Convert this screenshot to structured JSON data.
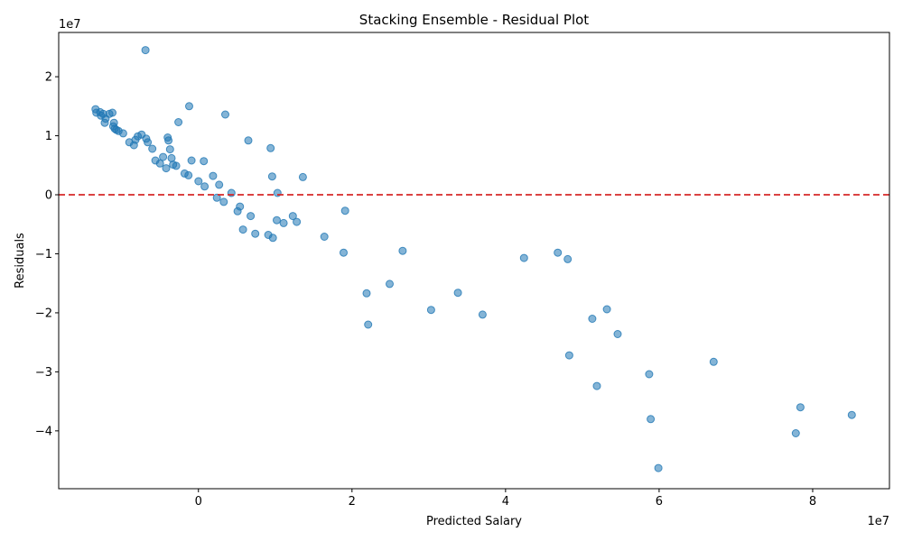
{
  "chart_data": {
    "type": "scatter",
    "title": "Stacking Ensemble - Residual Plot",
    "xlabel": "Predicted Salary",
    "ylabel": "Residuals",
    "x_offset_label": "1e7",
    "y_offset_label": "1e7",
    "xlim": [
      -1.82,
      9.0
    ],
    "ylim": [
      -4.98,
      2.75
    ],
    "x_ticks": [
      0,
      2,
      4,
      6,
      8
    ],
    "x_tick_labels": [
      "0",
      "2",
      "4",
      "6",
      "8"
    ],
    "y_ticks": [
      -4,
      -3,
      -2,
      -1,
      0,
      1,
      2
    ],
    "y_tick_labels": [
      "−4",
      "−3",
      "−2",
      "−1",
      "0",
      "1",
      "2"
    ],
    "reference_line": {
      "y": 0,
      "color": "#d62728",
      "style": "dashed"
    },
    "marker_color": "#1f77b4",
    "marker_alpha": 0.55,
    "grid": false,
    "points": [
      [
        -1.34,
        1.45
      ],
      [
        -1.33,
        1.39
      ],
      [
        -1.28,
        1.4
      ],
      [
        -1.27,
        1.34
      ],
      [
        -1.24,
        1.37
      ],
      [
        -1.21,
        1.29
      ],
      [
        -1.22,
        1.22
      ],
      [
        -1.16,
        1.37
      ],
      [
        -1.12,
        1.39
      ],
      [
        -1.11,
        1.16
      ],
      [
        -1.1,
        1.22
      ],
      [
        -1.09,
        1.12
      ],
      [
        -1.07,
        1.1
      ],
      [
        -1.04,
        1.08
      ],
      [
        -0.98,
        1.04
      ],
      [
        -0.9,
        0.89
      ],
      [
        -0.84,
        0.84
      ],
      [
        -0.82,
        0.93
      ],
      [
        -0.79,
        0.99
      ],
      [
        -0.74,
        1.02
      ],
      [
        -0.68,
        0.95
      ],
      [
        -0.66,
        0.89
      ],
      [
        -0.6,
        0.78
      ],
      [
        -0.69,
        2.45
      ],
      [
        -0.56,
        0.58
      ],
      [
        -0.5,
        0.53
      ],
      [
        -0.46,
        0.64
      ],
      [
        -0.42,
        0.45
      ],
      [
        -0.4,
        0.97
      ],
      [
        -0.39,
        0.92
      ],
      [
        -0.37,
        0.77
      ],
      [
        -0.35,
        0.62
      ],
      [
        -0.33,
        0.51
      ],
      [
        -0.29,
        0.49
      ],
      [
        -0.26,
        1.23
      ],
      [
        -0.18,
        0.36
      ],
      [
        -0.13,
        0.33
      ],
      [
        -0.12,
        1.5
      ],
      [
        -0.09,
        0.58
      ],
      [
        0.0,
        0.23
      ],
      [
        0.07,
        0.57
      ],
      [
        0.08,
        0.14
      ],
      [
        0.19,
        0.32
      ],
      [
        0.24,
        -0.05
      ],
      [
        0.27,
        0.17
      ],
      [
        0.33,
        -0.12
      ],
      [
        0.35,
        1.36
      ],
      [
        0.43,
        0.03
      ],
      [
        0.51,
        -0.28
      ],
      [
        0.54,
        -0.2
      ],
      [
        0.58,
        -0.59
      ],
      [
        0.65,
        0.92
      ],
      [
        0.68,
        -0.36
      ],
      [
        0.74,
        -0.66
      ],
      [
        0.91,
        -0.68
      ],
      [
        0.94,
        0.79
      ],
      [
        0.96,
        0.31
      ],
      [
        0.97,
        -0.73
      ],
      [
        1.02,
        -0.43
      ],
      [
        1.03,
        0.03
      ],
      [
        1.11,
        -0.48
      ],
      [
        1.23,
        -0.36
      ],
      [
        1.28,
        -0.46
      ],
      [
        1.36,
        0.3
      ],
      [
        1.64,
        -0.71
      ],
      [
        1.89,
        -0.98
      ],
      [
        1.91,
        -0.27
      ],
      [
        2.19,
        -1.67
      ],
      [
        2.21,
        -2.2
      ],
      [
        2.49,
        -1.51
      ],
      [
        2.66,
        -0.95
      ],
      [
        3.03,
        -1.95
      ],
      [
        3.38,
        -1.66
      ],
      [
        3.7,
        -2.03
      ],
      [
        4.24,
        -1.07
      ],
      [
        4.68,
        -0.98
      ],
      [
        4.81,
        -1.09
      ],
      [
        4.83,
        -2.72
      ],
      [
        5.13,
        -2.1
      ],
      [
        5.19,
        -3.24
      ],
      [
        5.32,
        -1.94
      ],
      [
        5.46,
        -2.36
      ],
      [
        5.87,
        -3.04
      ],
      [
        5.89,
        -3.8
      ],
      [
        5.99,
        -4.63
      ],
      [
        6.71,
        -2.83
      ],
      [
        7.78,
        -4.04
      ],
      [
        7.84,
        -3.6
      ],
      [
        8.51,
        -3.73
      ]
    ]
  }
}
